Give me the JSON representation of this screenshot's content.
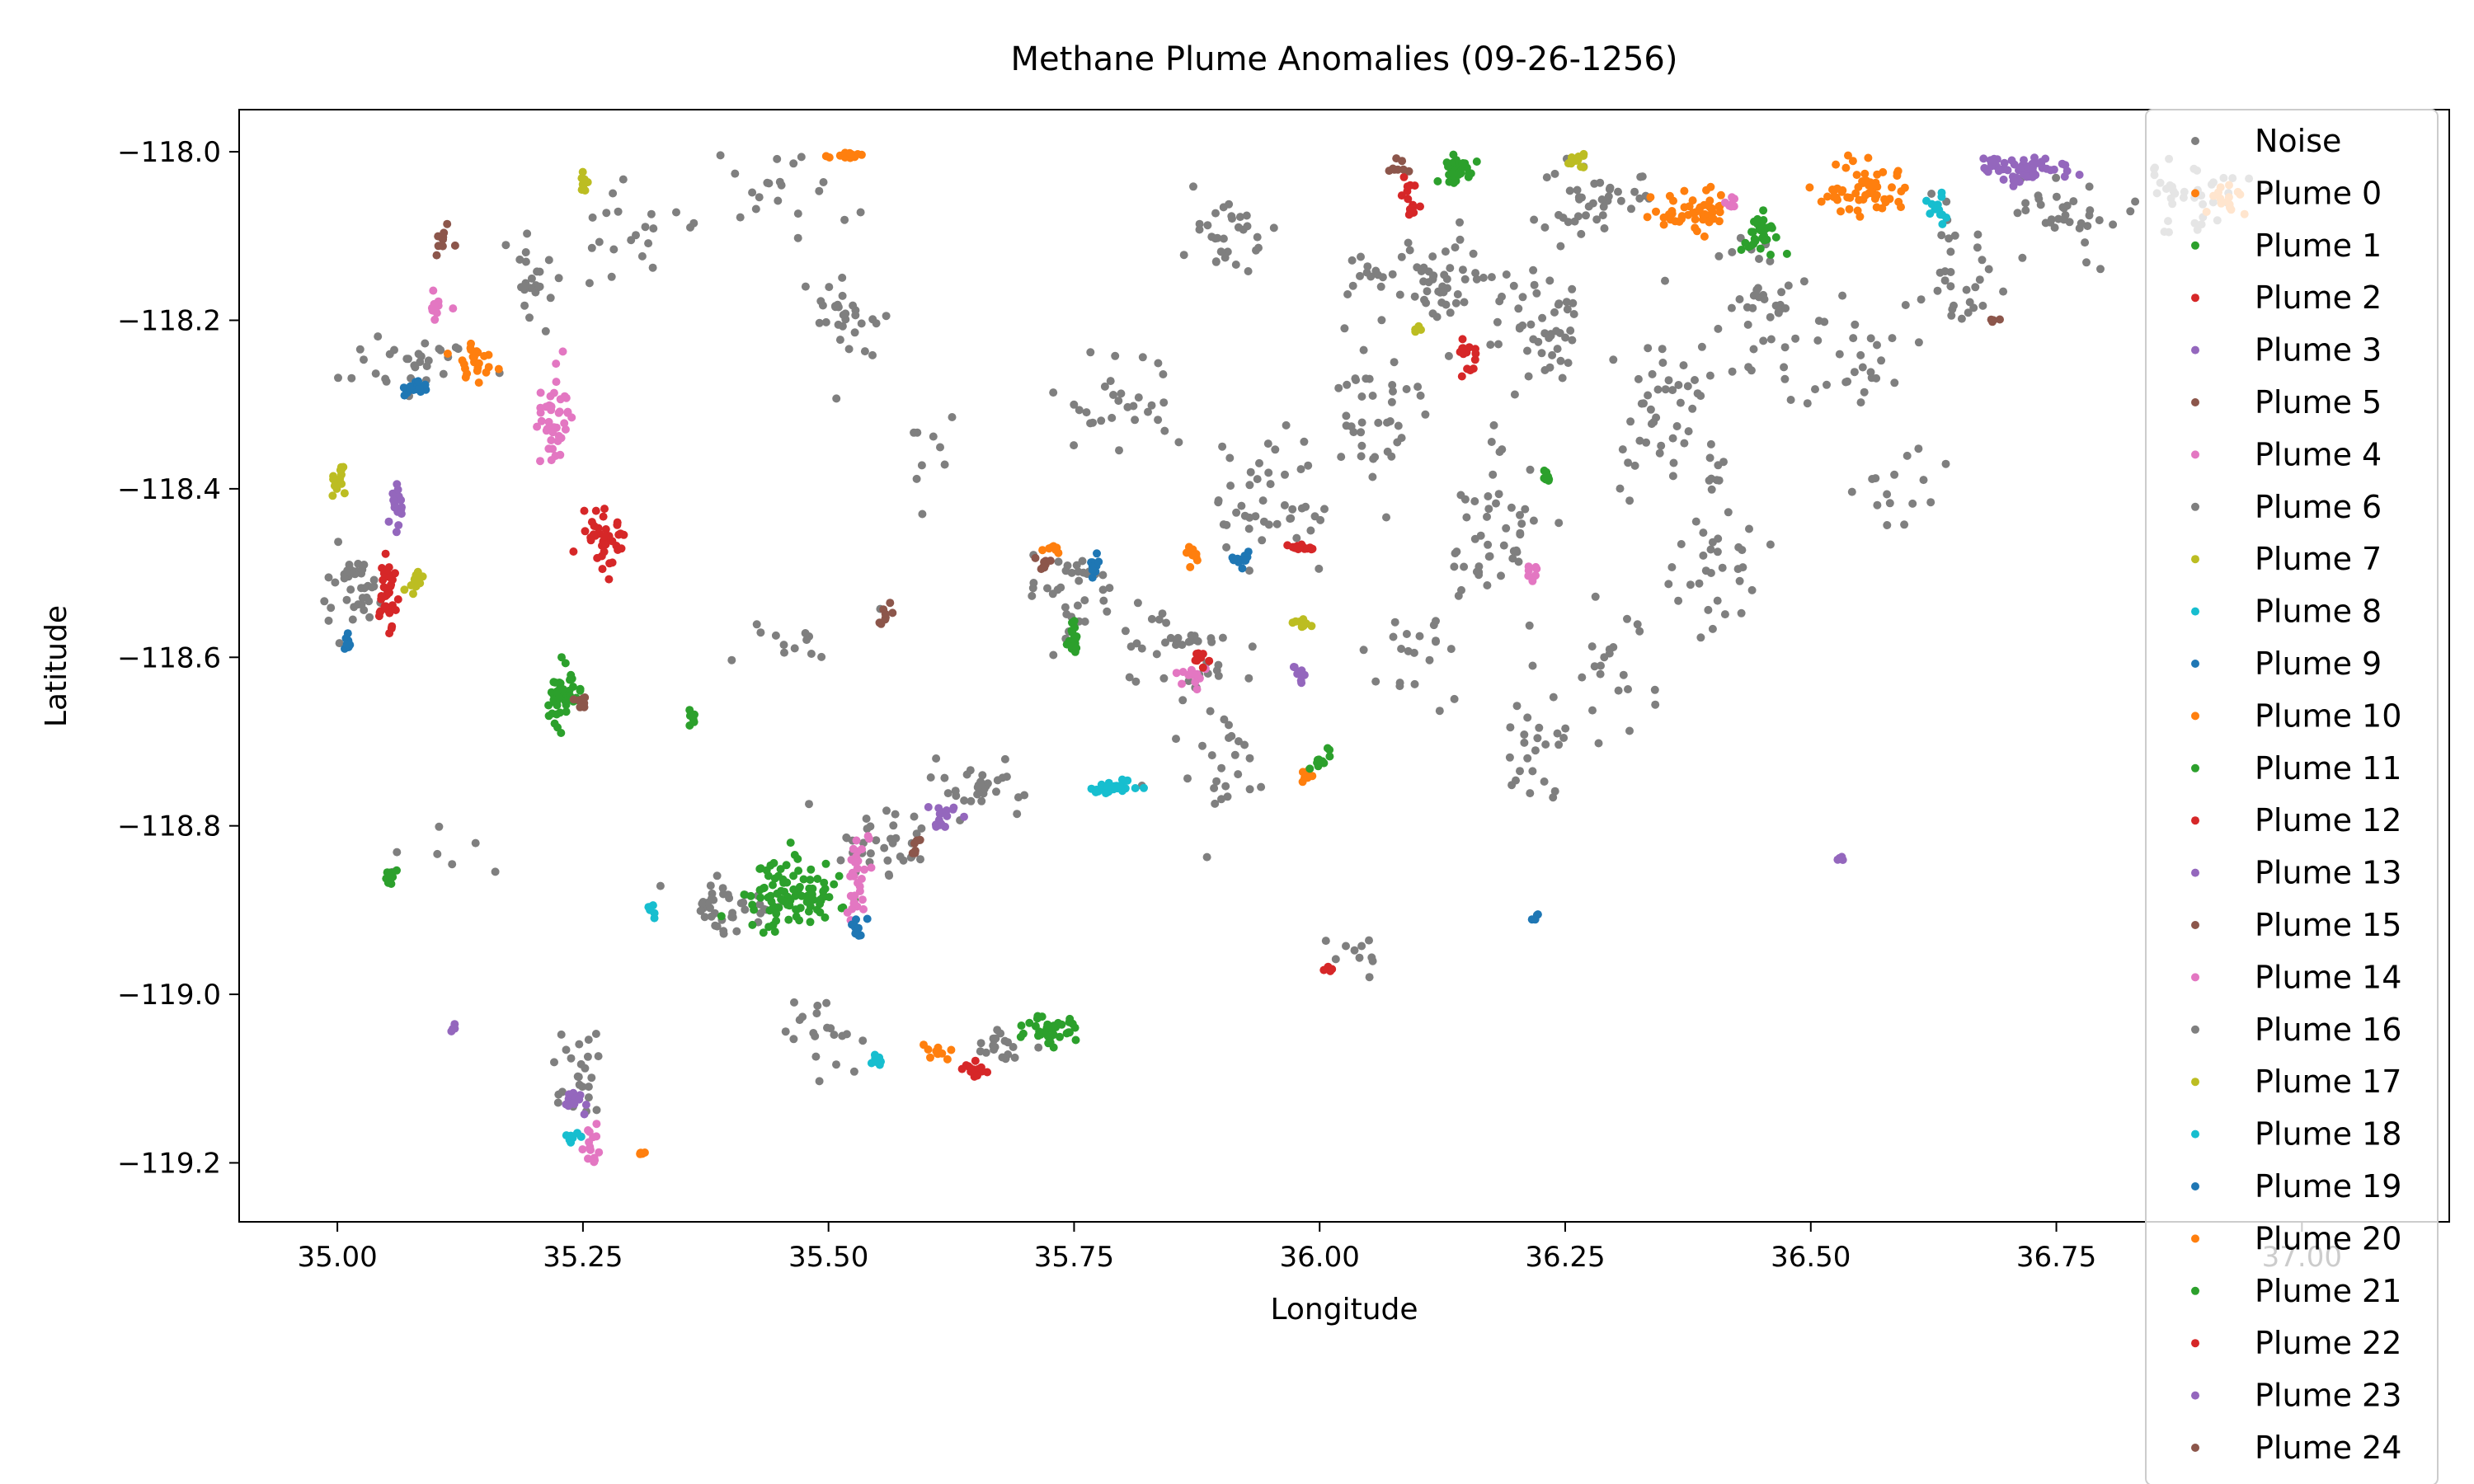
{
  "chart_data": {
    "type": "scatter",
    "title": "Methane Plume Anomalies (09-26-1256)",
    "xlabel": "Longitude",
    "ylabel": "Latitude",
    "xlim": [
      34.9,
      37.15
    ],
    "ylim": [
      -119.27,
      -117.95
    ],
    "x_ticks": [
      35.0,
      35.25,
      35.5,
      35.75,
      36.0,
      36.25,
      36.5,
      36.75,
      37.0
    ],
    "x_tick_labels": [
      "35.00",
      "35.25",
      "35.50",
      "35.75",
      "36.00",
      "36.25",
      "36.50",
      "36.75",
      "37.00"
    ],
    "y_ticks": [
      -118.0,
      -118.2,
      -118.4,
      -118.6,
      -118.8,
      -119.0,
      -119.2
    ],
    "y_tick_labels": [
      "−118.0",
      "−118.2",
      "−118.4",
      "−118.6",
      "−118.8",
      "−119.0",
      "−119.2"
    ],
    "grid": false,
    "legend_position": "right",
    "series": [
      {
        "name": "Noise",
        "color": "#7f7f7f",
        "clusters": [
          [
            35.08,
            -118.25,
            0.06,
            0.04,
            30
          ],
          [
            35.2,
            -118.15,
            0.06,
            0.05,
            25
          ],
          [
            35.3,
            -118.1,
            0.05,
            0.06,
            20
          ],
          [
            35.02,
            -118.5,
            0.03,
            0.06,
            40
          ],
          [
            35.45,
            -118.05,
            0.06,
            0.05,
            20
          ],
          [
            35.52,
            -118.2,
            0.04,
            0.06,
            30
          ],
          [
            35.45,
            -118.58,
            0.05,
            0.03,
            12
          ],
          [
            35.6,
            -118.4,
            0.05,
            0.1,
            10
          ],
          [
            35.75,
            -118.52,
            0.05,
            0.05,
            35
          ],
          [
            35.8,
            -118.3,
            0.06,
            0.06,
            30
          ],
          [
            35.85,
            -118.6,
            0.06,
            0.06,
            40
          ],
          [
            35.9,
            -118.1,
            0.05,
            0.05,
            30
          ],
          [
            35.95,
            -118.42,
            0.06,
            0.08,
            45
          ],
          [
            36.05,
            -118.3,
            0.05,
            0.08,
            40
          ],
          [
            36.12,
            -118.15,
            0.05,
            0.06,
            50
          ],
          [
            36.18,
            -118.45,
            0.05,
            0.1,
            50
          ],
          [
            36.22,
            -118.2,
            0.05,
            0.08,
            50
          ],
          [
            36.28,
            -118.05,
            0.05,
            0.04,
            40
          ],
          [
            36.22,
            -118.7,
            0.04,
            0.08,
            25
          ],
          [
            36.35,
            -118.3,
            0.06,
            0.1,
            45
          ],
          [
            36.45,
            -118.2,
            0.05,
            0.1,
            40
          ],
          [
            36.4,
            -118.5,
            0.04,
            0.08,
            30
          ],
          [
            36.55,
            -118.25,
            0.05,
            0.08,
            25
          ],
          [
            36.65,
            -118.15,
            0.04,
            0.08,
            30
          ],
          [
            36.75,
            -118.08,
            0.06,
            0.06,
            35
          ],
          [
            36.88,
            -118.05,
            0.06,
            0.05,
            40
          ],
          [
            36.6,
            -118.4,
            0.05,
            0.06,
            15
          ],
          [
            35.4,
            -118.9,
            0.05,
            0.04,
            40
          ],
          [
            35.55,
            -118.82,
            0.05,
            0.04,
            35
          ],
          [
            35.65,
            -118.75,
            0.05,
            0.03,
            30
          ],
          [
            35.68,
            -119.06,
            0.04,
            0.02,
            20
          ],
          [
            35.5,
            -119.05,
            0.04,
            0.04,
            20
          ],
          [
            35.25,
            -119.1,
            0.03,
            0.06,
            25
          ],
          [
            35.9,
            -118.75,
            0.06,
            0.08,
            25
          ],
          [
            36.05,
            -118.95,
            0.04,
            0.03,
            10
          ],
          [
            35.1,
            -118.85,
            0.06,
            0.06,
            8
          ],
          [
            36.1,
            -118.6,
            0.05,
            0.06,
            20
          ],
          [
            36.3,
            -118.6,
            0.04,
            0.06,
            20
          ]
        ]
      },
      {
        "name": "Plume 0",
        "color": "#ff7f0e",
        "clusters": [
          [
            35.52,
            -118.005,
            0.02,
            0.004,
            15
          ],
          [
            36.38,
            -118.07,
            0.04,
            0.025,
            50
          ],
          [
            36.55,
            -118.04,
            0.05,
            0.03,
            60
          ],
          [
            36.92,
            -118.06,
            0.02,
            0.02,
            15
          ]
        ]
      },
      {
        "name": "Plume 1",
        "color": "#2ca02c",
        "clusters": [
          [
            36.14,
            -118.02,
            0.015,
            0.015,
            40
          ],
          [
            36.45,
            -118.09,
            0.02,
            0.03,
            35
          ],
          [
            35.23,
            -118.65,
            0.02,
            0.03,
            50
          ],
          [
            35.46,
            -118.88,
            0.05,
            0.04,
            100
          ]
        ]
      },
      {
        "name": "Plume 2",
        "color": "#d62728",
        "clusters": [
          [
            35.27,
            -118.46,
            0.02,
            0.03,
            40
          ],
          [
            35.05,
            -118.52,
            0.01,
            0.05,
            35
          ],
          [
            36.09,
            -118.06,
            0.01,
            0.03,
            15
          ]
        ]
      },
      {
        "name": "Plume 3",
        "color": "#9467bd",
        "clusters": [
          [
            36.72,
            -118.02,
            0.05,
            0.015,
            60
          ],
          [
            35.06,
            -118.43,
            0.01,
            0.03,
            15
          ],
          [
            35.24,
            -119.13,
            0.01,
            0.02,
            15
          ]
        ]
      },
      {
        "name": "Plume 5",
        "color": "#8c564b",
        "clusters": [
          [
            35.11,
            -118.1,
            0.01,
            0.02,
            10
          ],
          [
            35.56,
            -118.55,
            0.01,
            0.01,
            8
          ],
          [
            36.08,
            -118.02,
            0.01,
            0.01,
            8
          ]
        ]
      },
      {
        "name": "Plume 4",
        "color": "#e377c2",
        "clusters": [
          [
            35.22,
            -118.32,
            0.015,
            0.05,
            40
          ],
          [
            35.1,
            -118.18,
            0.01,
            0.02,
            12
          ],
          [
            35.53,
            -118.86,
            0.015,
            0.04,
            30
          ],
          [
            35.26,
            -119.18,
            0.01,
            0.02,
            15
          ],
          [
            35.87,
            -118.62,
            0.015,
            0.02,
            12
          ]
        ]
      },
      {
        "name": "Plume 6",
        "color": "#7f7f7f",
        "clusters": [
          [
            36.05,
            -118.15,
            0.02,
            0.02,
            10
          ]
        ]
      },
      {
        "name": "Plume 7",
        "color": "#bcbd22",
        "clusters": [
          [
            35.0,
            -118.39,
            0.01,
            0.015,
            15
          ],
          [
            35.08,
            -118.51,
            0.015,
            0.015,
            12
          ],
          [
            35.25,
            -118.04,
            0.005,
            0.015,
            10
          ],
          [
            36.26,
            -118.01,
            0.01,
            0.01,
            12
          ]
        ]
      },
      {
        "name": "Plume 8",
        "color": "#17becf",
        "clusters": [
          [
            35.79,
            -118.755,
            0.03,
            0.008,
            30
          ],
          [
            35.55,
            -119.08,
            0.015,
            0.008,
            10
          ],
          [
            36.63,
            -118.07,
            0.015,
            0.015,
            15
          ]
        ]
      },
      {
        "name": "Plume 9",
        "color": "#1f77b4",
        "clusters": [
          [
            35.08,
            -118.28,
            0.012,
            0.01,
            15
          ],
          [
            35.01,
            -118.58,
            0.005,
            0.01,
            8
          ],
          [
            35.92,
            -118.48,
            0.01,
            0.01,
            10
          ],
          [
            35.53,
            -118.92,
            0.01,
            0.015,
            10
          ]
        ]
      },
      {
        "name": "Plume 10",
        "color": "#ff7f0e",
        "clusters": [
          [
            35.14,
            -118.25,
            0.02,
            0.02,
            25
          ],
          [
            35.87,
            -118.48,
            0.01,
            0.015,
            10
          ],
          [
            35.99,
            -118.74,
            0.01,
            0.01,
            10
          ],
          [
            35.61,
            -119.07,
            0.015,
            0.01,
            10
          ]
        ]
      },
      {
        "name": "Plume 11",
        "color": "#2ca02c",
        "clusters": [
          [
            35.75,
            -118.58,
            0.005,
            0.025,
            20
          ],
          [
            36.0,
            -118.72,
            0.01,
            0.01,
            10
          ],
          [
            35.72,
            -119.04,
            0.03,
            0.02,
            40
          ],
          [
            35.055,
            -118.86,
            0.005,
            0.01,
            8
          ]
        ]
      },
      {
        "name": "Plume 12",
        "color": "#d62728",
        "clusters": [
          [
            35.98,
            -118.47,
            0.015,
            0.005,
            15
          ],
          [
            36.15,
            -118.24,
            0.01,
            0.02,
            15
          ],
          [
            35.65,
            -119.09,
            0.02,
            0.01,
            15
          ]
        ]
      },
      {
        "name": "Plume 13",
        "color": "#9467bd",
        "clusters": [
          [
            35.62,
            -118.79,
            0.02,
            0.015,
            15
          ],
          [
            35.98,
            -118.62,
            0.01,
            0.01,
            8
          ]
        ]
      },
      {
        "name": "Plume 15",
        "color": "#8c564b",
        "clusters": [
          [
            35.25,
            -118.65,
            0.008,
            0.01,
            8
          ],
          [
            35.59,
            -118.82,
            0.01,
            0.01,
            6
          ]
        ]
      },
      {
        "name": "Plume 14",
        "color": "#e377c2",
        "clusters": [
          [
            36.22,
            -118.5,
            0.01,
            0.01,
            8
          ],
          [
            36.42,
            -118.06,
            0.01,
            0.01,
            8
          ]
        ]
      },
      {
        "name": "Plume 16",
        "color": "#7f7f7f",
        "clusters": [
          [
            36.4,
            -118.38,
            0.02,
            0.04,
            10
          ]
        ]
      },
      {
        "name": "Plume 17",
        "color": "#bcbd22",
        "clusters": [
          [
            35.98,
            -118.56,
            0.01,
            0.01,
            8
          ],
          [
            36.1,
            -118.21,
            0.005,
            0.01,
            5
          ]
        ]
      },
      {
        "name": "Plume 18",
        "color": "#17becf",
        "clusters": [
          [
            35.32,
            -118.9,
            0.005,
            0.01,
            6
          ],
          [
            35.24,
            -119.17,
            0.01,
            0.01,
            8
          ]
        ]
      },
      {
        "name": "Plume 19",
        "color": "#1f77b4",
        "clusters": [
          [
            35.77,
            -118.49,
            0.01,
            0.015,
            10
          ],
          [
            36.22,
            -118.91,
            0.005,
            0.005,
            4
          ]
        ]
      },
      {
        "name": "Plume 20",
        "color": "#ff7f0e",
        "clusters": [
          [
            35.73,
            -118.47,
            0.01,
            0.005,
            8
          ],
          [
            35.31,
            -119.19,
            0.005,
            0.005,
            5
          ]
        ]
      },
      {
        "name": "Plume 21",
        "color": "#2ca02c",
        "clusters": [
          [
            36.23,
            -118.39,
            0.005,
            0.01,
            8
          ],
          [
            35.36,
            -118.67,
            0.005,
            0.01,
            6
          ]
        ]
      },
      {
        "name": "Plume 22",
        "color": "#d62728",
        "clusters": [
          [
            35.88,
            -118.6,
            0.01,
            0.01,
            8
          ],
          [
            36.01,
            -118.97,
            0.005,
            0.005,
            5
          ]
        ]
      },
      {
        "name": "Plume 23",
        "color": "#9467bd",
        "clusters": [
          [
            35.12,
            -119.04,
            0.005,
            0.005,
            5
          ],
          [
            36.53,
            -118.84,
            0.005,
            0.005,
            5
          ]
        ]
      },
      {
        "name": "Plume 24",
        "color": "#8c564b",
        "clusters": [
          [
            35.72,
            -118.49,
            0.01,
            0.01,
            8
          ],
          [
            36.69,
            -118.2,
            0.005,
            0.005,
            4
          ]
        ]
      }
    ]
  }
}
